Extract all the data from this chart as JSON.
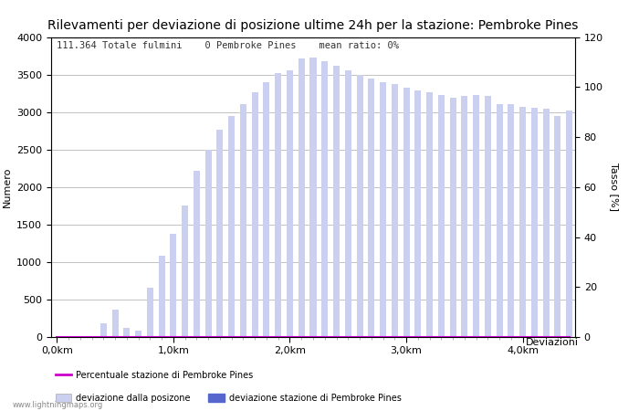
{
  "title": "Rilevamenti per deviazione di posizione ultime 24h per la stazione: Pembroke Pines",
  "xlabel": "Deviazioni",
  "ylabel_left": "Numero",
  "ylabel_right": "Tasso [%]",
  "info_text": "111.364 Totale fulmini    0 Pembroke Pines    mean ratio: 0%",
  "watermark": "www.lightningmaps.org",
  "bar_color_light": "#ccd0f0",
  "bar_color_dark": "#5566cc",
  "line_color": "#cc00cc",
  "ylim_left": [
    0,
    4000
  ],
  "ylim_right": [
    0,
    120
  ],
  "yticks_left": [
    0,
    500,
    1000,
    1500,
    2000,
    2500,
    3000,
    3500,
    4000
  ],
  "yticks_right": [
    0,
    20,
    40,
    60,
    80,
    100,
    120
  ],
  "bar_width": 0.55,
  "xtick_positions": [
    0,
    10,
    20,
    30,
    40
  ],
  "xtick_labels": [
    "0,0km",
    "1,0km",
    "2,0km",
    "3,0km",
    "4,0km"
  ],
  "bar_values": [
    0,
    0,
    0,
    0,
    180,
    360,
    120,
    80,
    660,
    1080,
    1380,
    1750,
    2220,
    2500,
    2770,
    2950,
    3110,
    3260,
    3400,
    3520,
    3550,
    3710,
    3720,
    3680,
    3620,
    3560,
    3490,
    3450,
    3400,
    3370,
    3330,
    3290,
    3260,
    3230,
    3190,
    3210,
    3230,
    3210,
    3100,
    3110,
    3070,
    3060,
    3050,
    2950,
    3020
  ],
  "station_bar_values": [
    0,
    0,
    0,
    0,
    0,
    0,
    0,
    0,
    0,
    0,
    0,
    0,
    0,
    0,
    0,
    0,
    0,
    0,
    0,
    0,
    0,
    0,
    0,
    0,
    0,
    0,
    0,
    0,
    0,
    0,
    0,
    0,
    0,
    0,
    0,
    0,
    0,
    0,
    0,
    0,
    0,
    0,
    0,
    0,
    0
  ],
  "legend_label_light": "deviazione dalla posizone",
  "legend_label_dark": "deviazione stazione di Pembroke Pines",
  "legend_label_line": "Percentuale stazione di Pembroke Pines",
  "background_color": "#ffffff",
  "grid_color": "#aaaaaa",
  "title_fontsize": 10,
  "axis_fontsize": 8,
  "tick_fontsize": 8,
  "info_fontsize": 7.5
}
